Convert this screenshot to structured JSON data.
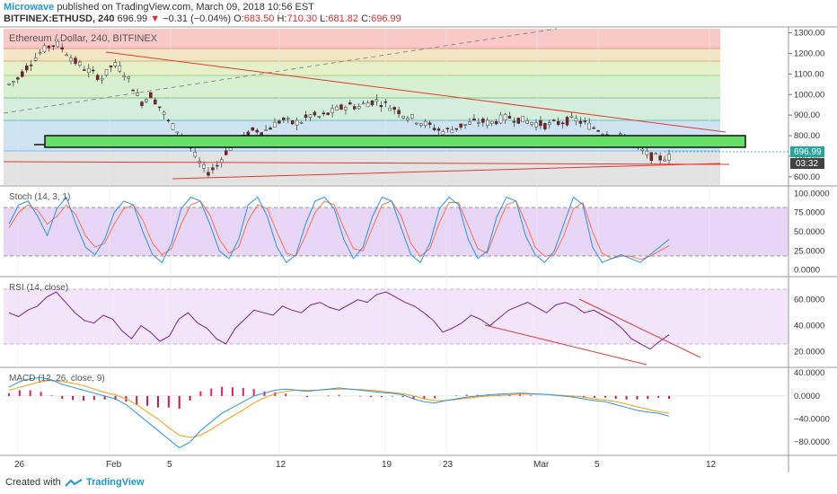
{
  "header": {
    "author": "Microwave",
    "published": "published on TradingView.com, March 09, 2018 10:56 EST",
    "symbol": "BITFINEX:ETHUSD, 240",
    "last": "696.99",
    "change_arrow": "▼",
    "change": "−0.31 (−0.04%)",
    "o_label": "O:",
    "o_val": "683.50",
    "h_label": "H:",
    "h_val": "710.30",
    "l_label": "L:",
    "l_val": "681.82",
    "c_label": "C:",
    "c_val": "696.99"
  },
  "footer": {
    "created": "Created with",
    "brand": "TradingView"
  },
  "colors": {
    "up": "#26a69a",
    "down": "#ef5350",
    "trend": "#e53935",
    "stoch_k": "#2196f3",
    "stoch_d": "#ff7043",
    "rsi": "#7b1fa2",
    "macd": "#2196f3",
    "signal": "#ff9800",
    "hist_pos": "#e91e63",
    "hist_neg": "#e91e63",
    "zone": "#66e066"
  },
  "chart_data": [
    {
      "type": "candlestick",
      "title": "Ethereum / Dollar, 240, BITFINEX",
      "ylim": [
        560,
        1320
      ],
      "y_ticks": [
        600,
        700,
        800,
        900,
        1000,
        1100,
        1200,
        1300
      ],
      "y_tick_labels": [
        "600.00",
        "700.00",
        "800.00",
        "900.00",
        "1000.00",
        "1100.00",
        "1200.00",
        "1300.00"
      ],
      "price_label": "696.99",
      "time_label": "03:32",
      "x_tick_labels": [
        "26",
        "Feb",
        "5",
        "12",
        "19",
        "23",
        "Mar",
        "5",
        "12"
      ],
      "close_path": [
        1050,
        1080,
        1140,
        1190,
        1230,
        1250,
        1210,
        1160,
        1130,
        1100,
        1080,
        1150,
        1120,
        1050,
        960,
        1000,
        940,
        860,
        820,
        760,
        680,
        620,
        650,
        720,
        760,
        790,
        830,
        820,
        850,
        880,
        860,
        870,
        900,
        890,
        910,
        930,
        950,
        940,
        960,
        970,
        950,
        930,
        900,
        880,
        860,
        840,
        820,
        830,
        850,
        860,
        870,
        860,
        880,
        890,
        880,
        870,
        860,
        850,
        860,
        870,
        880,
        860,
        840,
        820,
        800,
        790,
        760,
        730,
        700,
        690,
        697
      ]
    },
    {
      "type": "line",
      "title": "Stoch (14, 3, 1)",
      "ylim": [
        -5,
        105
      ],
      "y_tick_labels": [
        "100.0000",
        "75.0000",
        "50.0000",
        "25.0000",
        "0.0000"
      ],
      "band": [
        20,
        80
      ],
      "series": [
        {
          "values": [
            60,
            85,
            90,
            70,
            45,
            80,
            95,
            60,
            30,
            20,
            40,
            75,
            90,
            85,
            50,
            20,
            10,
            35,
            80,
            95,
            90,
            60,
            25,
            15,
            40,
            85,
            95,
            70,
            30,
            10,
            20,
            60,
            90,
            95,
            80,
            40,
            15,
            30,
            70,
            95,
            90,
            55,
            20,
            10,
            35,
            80,
            95,
            85,
            40,
            15,
            25,
            70,
            95,
            90,
            45,
            20,
            10,
            25,
            60,
            95,
            85,
            30,
            10,
            15,
            20,
            15,
            10,
            20,
            30,
            40
          ]
        },
        {
          "values": [
            55,
            75,
            85,
            78,
            60,
            70,
            85,
            72,
            45,
            30,
            35,
            60,
            80,
            85,
            65,
            35,
            20,
            28,
            60,
            85,
            90,
            72,
            40,
            22,
            30,
            65,
            85,
            80,
            50,
            22,
            18,
            45,
            75,
            90,
            85,
            55,
            28,
            25,
            55,
            85,
            90,
            70,
            35,
            18,
            28,
            62,
            88,
            88,
            58,
            28,
            22,
            55,
            85,
            90,
            62,
            30,
            18,
            20,
            45,
            80,
            88,
            50,
            22,
            15,
            18,
            18,
            14,
            18,
            25,
            32
          ]
        }
      ]
    },
    {
      "type": "line",
      "title": "RSI (14, close)",
      "ylim": [
        10,
        75
      ],
      "y_tick_labels": [
        "60.0000",
        "40.0000",
        "20.0000"
      ],
      "band": [
        30,
        70
      ],
      "series": [
        {
          "values": [
            50,
            47,
            52,
            55,
            62,
            66,
            58,
            50,
            44,
            42,
            48,
            45,
            36,
            30,
            40,
            35,
            28,
            32,
            45,
            50,
            42,
            38,
            30,
            26,
            38,
            45,
            52,
            50,
            48,
            55,
            52,
            50,
            56,
            58,
            54,
            52,
            56,
            60,
            58,
            64,
            66,
            62,
            58,
            55,
            50,
            44,
            35,
            38,
            42,
            48,
            45,
            40,
            46,
            52,
            55,
            58,
            54,
            50,
            56,
            58,
            55,
            50,
            52,
            48,
            44,
            38,
            30,
            26,
            22,
            28,
            33
          ]
        }
      ]
    },
    {
      "type": "line",
      "title": "MACD (12, 26, close, 9)",
      "ylim": [
        -100,
        45
      ],
      "y_tick_labels": [
        "40.0000",
        "0.0000",
        "−40.0000",
        "−80.0000"
      ],
      "series": [
        {
          "values": [
            15,
            25,
            30,
            32,
            28,
            20,
            15,
            10,
            5,
            0,
            -5,
            -15,
            -30,
            -45,
            -60,
            -75,
            -90,
            -80,
            -60,
            -45,
            -30,
            -20,
            -10,
            0,
            5,
            10,
            12,
            10,
            8,
            10,
            12,
            14,
            12,
            10,
            8,
            6,
            5,
            2,
            -5,
            -10,
            -12,
            -8,
            -5,
            -2,
            0,
            2,
            3,
            4,
            5,
            4,
            3,
            2,
            0,
            -2,
            -5,
            -8,
            -10,
            -15,
            -20,
            -25,
            -28,
            -30,
            -35
          ]
        },
        {
          "values": [
            10,
            15,
            20,
            25,
            27,
            25,
            22,
            18,
            12,
            6,
            2,
            -5,
            -15,
            -28,
            -40,
            -55,
            -68,
            -72,
            -68,
            -58,
            -46,
            -35,
            -24,
            -12,
            -3,
            4,
            8,
            10,
            10,
            10,
            11,
            12,
            12,
            11,
            10,
            8,
            6,
            4,
            0,
            -5,
            -8,
            -8,
            -6,
            -4,
            -2,
            0,
            1,
            2,
            3,
            3,
            3,
            2,
            1,
            0,
            -2,
            -5,
            -7,
            -10,
            -14,
            -19,
            -23,
            -27,
            -30
          ]
        },
        {
          "values": [
            5,
            10,
            10,
            7,
            1,
            -5,
            -7,
            -8,
            -7,
            -6,
            -7,
            -10,
            -15,
            -17,
            -20,
            -20,
            -22,
            -8,
            8,
            13,
            16,
            15,
            14,
            12,
            8,
            6,
            4,
            0,
            -2,
            0,
            1,
            2,
            0,
            -1,
            -2,
            -2,
            -1,
            -2,
            -5,
            -5,
            -4,
            0,
            1,
            2,
            2,
            2,
            2,
            2,
            2,
            1,
            0,
            0,
            -1,
            -2,
            -3,
            -3,
            -3,
            -5,
            -6,
            -6,
            -5,
            -3,
            -5
          ]
        }
      ]
    }
  ]
}
